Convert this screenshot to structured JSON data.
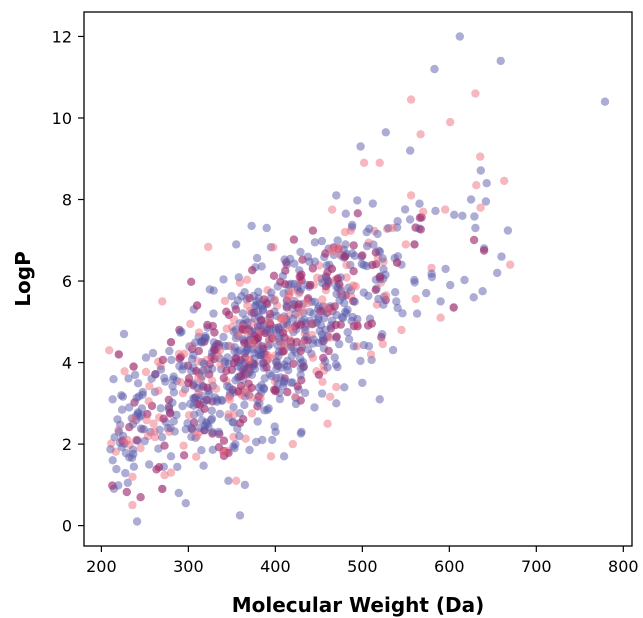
{
  "chart_data": {
    "type": "scatter",
    "title": "",
    "xlabel": "Molecular Weight (Da)",
    "ylabel": "LogP",
    "xlim": [
      180,
      810
    ],
    "ylim": [
      -0.5,
      12.6
    ],
    "xticks": [
      200,
      300,
      400,
      500,
      600,
      700,
      800
    ],
    "yticks": [
      0,
      2,
      4,
      6,
      8,
      10,
      12
    ],
    "grid": false,
    "legend": "none",
    "point_count": 1000,
    "series": [
      {
        "color": "#5a5aaa",
        "opacity": 0.5,
        "points": [
          [
            241,
            0.1
          ],
          [
            297,
            0.55
          ],
          [
            289,
            0.8
          ],
          [
            365,
            1.0
          ],
          [
            346,
            1.1
          ],
          [
            220,
            2.3
          ],
          [
            225,
            2.2
          ],
          [
            232,
            2.9
          ],
          [
            213,
            3.1
          ],
          [
            255,
            1.5
          ],
          [
            226,
            4.7
          ],
          [
            612,
            12.0
          ],
          [
            659,
            11.4
          ],
          [
            583,
            11.2
          ],
          [
            779,
            10.4
          ],
          [
            527,
            9.65
          ],
          [
            555,
            9.2
          ],
          [
            498,
            9.3
          ],
          [
            643,
            8.4
          ],
          [
            642,
            7.95
          ],
          [
            625,
            8.0
          ],
          [
            615,
            7.6
          ],
          [
            630,
            7.3
          ],
          [
            655,
            6.2
          ],
          [
            660,
            6.6
          ],
          [
            601,
            5.9
          ],
          [
            628,
            5.6
          ],
          [
            640,
            6.8
          ],
          [
            580,
            6.1
          ],
          [
            590,
            5.5
          ],
          [
            563,
            5.2
          ],
          [
            539,
            5.5
          ],
          [
            545,
            6.4
          ],
          [
            470,
            8.1
          ],
          [
            512,
            7.9
          ],
          [
            505,
            7.2
          ],
          [
            390,
            7.3
          ],
          [
            355,
            6.9
          ],
          [
            490,
            4.4
          ],
          [
            520,
            3.1
          ],
          [
            500,
            3.5
          ],
          [
            470,
            3.0
          ],
          [
            445,
            2.9
          ],
          [
            430,
            2.3
          ],
          [
            410,
            1.7
          ],
          [
            385,
            2.1
          ],
          [
            353,
            1.9
          ],
          [
            335,
            2.3
          ],
          [
            315,
            1.85
          ],
          [
            280,
            1.7
          ]
        ]
      },
      {
        "color": "#f07080",
        "opacity": 0.5,
        "points": [
          [
            209,
            4.3
          ],
          [
            245,
            1.9
          ],
          [
            230,
            2.1
          ],
          [
            280,
            1.3
          ],
          [
            340,
            1.8
          ],
          [
            355,
            1.1
          ],
          [
            270,
            5.5
          ],
          [
            556,
            10.45
          ],
          [
            601,
            9.9
          ],
          [
            630,
            10.6
          ],
          [
            567,
            9.6
          ],
          [
            502,
            8.9
          ],
          [
            520,
            8.9
          ],
          [
            556,
            8.1
          ],
          [
            570,
            7.7
          ],
          [
            631,
            8.35
          ],
          [
            636,
            7.8
          ],
          [
            670,
            6.4
          ],
          [
            590,
            5.1
          ],
          [
            535,
            7.3
          ],
          [
            545,
            4.8
          ],
          [
            510,
            4.2
          ],
          [
            470,
            3.4
          ],
          [
            460,
            2.5
          ],
          [
            420,
            2.0
          ],
          [
            395,
            1.7
          ],
          [
            310,
            2.2
          ],
          [
            260,
            2.5
          ],
          [
            550,
            6.9
          ],
          [
            480,
            7.2
          ]
        ]
      },
      {
        "color": "#a03070",
        "opacity": 0.7,
        "points": [
          [
            220,
            4.2
          ],
          [
            237,
            3.9
          ],
          [
            270,
            0.9
          ],
          [
            290,
            4.1
          ],
          [
            310,
            5.4
          ],
          [
            330,
            4.3
          ],
          [
            355,
            4.1
          ],
          [
            380,
            4.6
          ],
          [
            440,
            5.9
          ],
          [
            465,
            6.3
          ],
          [
            480,
            6.6
          ],
          [
            540,
            6.45
          ],
          [
            560,
            6.9
          ],
          [
            640,
            6.75
          ],
          [
            605,
            5.35
          ],
          [
            520,
            6.1
          ],
          [
            450,
            3.7
          ],
          [
            400,
            3.3
          ],
          [
            300,
            3.5
          ],
          [
            280,
            4.5
          ]
        ]
      }
    ],
    "cloud": {
      "center_x": 385,
      "center_y": 4.4,
      "slope": 0.0128,
      "sd_x": 85,
      "sd_resid": 0.95,
      "colors": [
        "#5a5aaa",
        "#5a5aaa",
        "#5a5aaa",
        "#f07080",
        "#a03070"
      ]
    }
  }
}
